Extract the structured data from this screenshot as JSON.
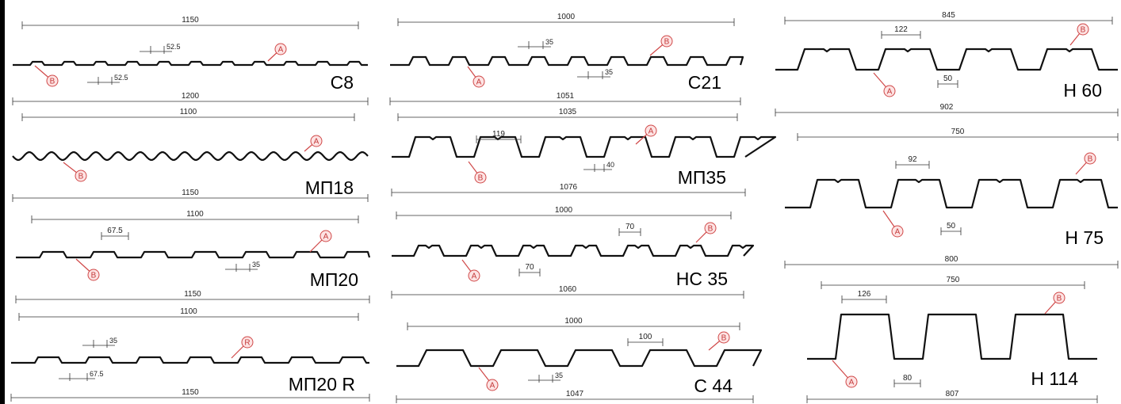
{
  "profiles": [
    {
      "key": "c8",
      "name": "C8",
      "top_dim": "1150",
      "bottom_dim": "1200",
      "dims": [
        "52.5",
        "52.5"
      ],
      "markers": [
        "A",
        "B"
      ]
    },
    {
      "key": "c21",
      "name": "C21",
      "top_dim": "1000",
      "bottom_dim": "1051",
      "dims": [
        "35",
        "35"
      ],
      "markers": [
        "B",
        "A"
      ]
    },
    {
      "key": "h60",
      "name": "H 60",
      "top_dim": "845",
      "bottom_dim": "902",
      "dims": [
        "122",
        "50"
      ],
      "markers": [
        "B",
        "A"
      ]
    },
    {
      "key": "mp18",
      "name": "МП18",
      "top_dim": "1100",
      "bottom_dim": "1150",
      "dims": [],
      "markers": [
        "A",
        "B"
      ]
    },
    {
      "key": "mp35",
      "name": "МП35",
      "top_dim": "1035",
      "bottom_dim": "1076",
      "dims": [
        "119",
        "40"
      ],
      "markers": [
        "A",
        "B"
      ]
    },
    {
      "key": "h75",
      "name": "H 75",
      "top_dim": "750",
      "bottom_dim": "800",
      "dims": [
        "92",
        "50"
      ],
      "markers": [
        "B",
        "A"
      ]
    },
    {
      "key": "mp20",
      "name": "МП20",
      "top_dim": "1100",
      "bottom_dim": "1150",
      "dims": [
        "67.5",
        "35"
      ],
      "markers": [
        "A",
        "B"
      ]
    },
    {
      "key": "hc35",
      "name": "НС 35",
      "top_dim": "1000",
      "bottom_dim": "1060",
      "dims": [
        "70",
        "70"
      ],
      "markers": [
        "B",
        "A"
      ]
    },
    {
      "key": "h114",
      "name": "H 114",
      "top_dim": "750",
      "bottom_dim": "807",
      "dims": [
        "126",
        "80"
      ],
      "markers": [
        "B",
        "A"
      ]
    },
    {
      "key": "mp20r",
      "name": "МП20 R",
      "top_dim": "1100",
      "bottom_dim": "1150",
      "dims": [
        "35",
        "67.5"
      ],
      "markers": [
        "R"
      ]
    },
    {
      "key": "c44",
      "name": "С 44",
      "top_dim": "1000",
      "bottom_dim": "1047",
      "dims": [
        "100",
        "35"
      ],
      "markers": [
        "B",
        "A"
      ]
    }
  ]
}
